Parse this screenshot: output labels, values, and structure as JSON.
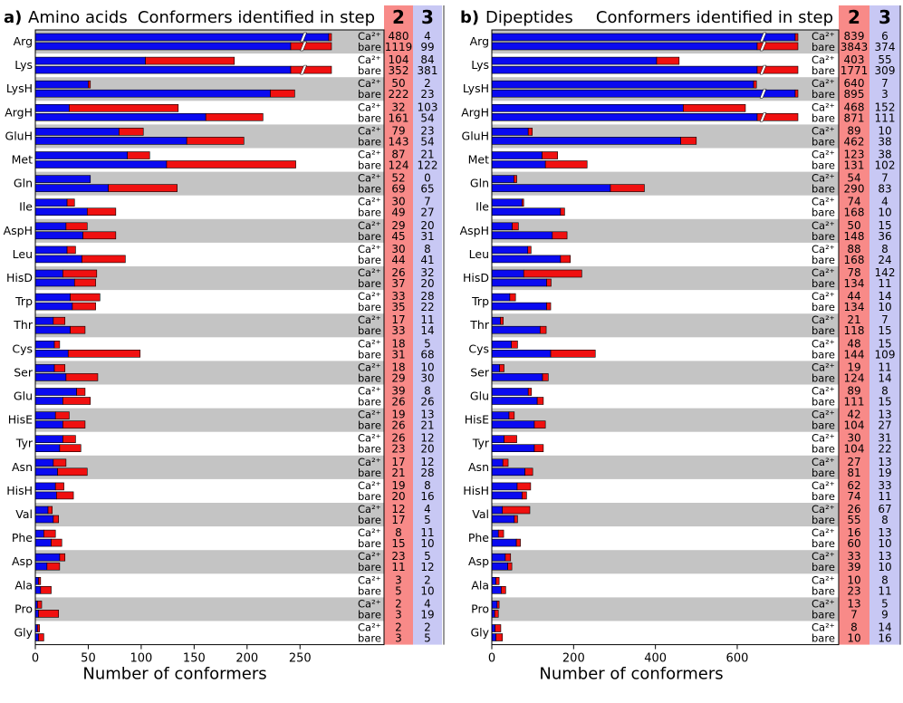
{
  "chart_data": [
    {
      "type": "bar",
      "orientation": "horizontal",
      "stacked": true,
      "panel_label": "a)",
      "title": "Amino acids",
      "header": "Conformers identified in step",
      "step_labels": [
        "2",
        "3"
      ],
      "row_labels": [
        "Ca²⁺",
        "bare"
      ],
      "xlabel": "Number of conformers",
      "xlim": [
        0,
        290
      ],
      "xticks": [
        0,
        50,
        100,
        150,
        200,
        250
      ],
      "axis_break_at": 252,
      "series_names": [
        "step 2",
        "step 3"
      ],
      "series_colors": [
        "#0000ee",
        "#ee0000"
      ],
      "categories": [
        "Arg",
        "Lys",
        "LysH",
        "ArgH",
        "GluH",
        "Met",
        "Gln",
        "Ile",
        "AspH",
        "Leu",
        "HisD",
        "Trp",
        "Thr",
        "Cys",
        "Ser",
        "Glu",
        "HisE",
        "Tyr",
        "Asn",
        "HisH",
        "Val",
        "Phe",
        "Asp",
        "Ala",
        "Pro",
        "Gly"
      ],
      "ca_step2": [
        480,
        104,
        50,
        32,
        79,
        87,
        52,
        30,
        29,
        30,
        26,
        33,
        17,
        18,
        18,
        39,
        19,
        26,
        17,
        19,
        12,
        8,
        23,
        3,
        2,
        2
      ],
      "ca_step3": [
        4,
        84,
        2,
        103,
        23,
        21,
        0,
        7,
        20,
        8,
        32,
        28,
        11,
        5,
        10,
        8,
        13,
        12,
        12,
        8,
        4,
        11,
        5,
        2,
        4,
        2
      ],
      "bare_step2": [
        1119,
        352,
        222,
        161,
        143,
        124,
        69,
        49,
        45,
        44,
        37,
        35,
        33,
        31,
        29,
        26,
        26,
        23,
        21,
        20,
        17,
        15,
        11,
        5,
        3,
        3
      ],
      "bare_step3": [
        99,
        381,
        23,
        54,
        54,
        122,
        65,
        27,
        31,
        41,
        20,
        22,
        14,
        68,
        30,
        26,
        21,
        20,
        28,
        16,
        5,
        10,
        12,
        10,
        19,
        5
      ]
    },
    {
      "type": "bar",
      "orientation": "horizontal",
      "stacked": true,
      "panel_label": "b)",
      "title": "Dipeptides",
      "header": "Conformers identified in step",
      "step_labels": [
        "2",
        "3"
      ],
      "row_labels": [
        "Ca²⁺",
        "bare"
      ],
      "xlabel": "Number of conformers",
      "xlim": [
        0,
        775
      ],
      "xticks": [
        0,
        200,
        400,
        600
      ],
      "axis_break_at": 660,
      "series_names": [
        "step 2",
        "step 3"
      ],
      "series_colors": [
        "#0000ee",
        "#ee0000"
      ],
      "categories": [
        "Arg",
        "Lys",
        "LysH",
        "ArgH",
        "GluH",
        "Met",
        "Gln",
        "Ile",
        "AspH",
        "Leu",
        "HisD",
        "Trp",
        "Thr",
        "Cys",
        "Ser",
        "Glu",
        "HisE",
        "Tyr",
        "Asn",
        "HisH",
        "Val",
        "Phe",
        "Asp",
        "Ala",
        "Pro",
        "Gly"
      ],
      "ca_step2": [
        839,
        403,
        640,
        468,
        89,
        123,
        54,
        74,
        50,
        88,
        78,
        44,
        21,
        48,
        19,
        89,
        42,
        30,
        27,
        62,
        26,
        16,
        33,
        10,
        13,
        8
      ],
      "ca_step3": [
        6,
        55,
        7,
        152,
        10,
        38,
        7,
        4,
        15,
        8,
        142,
        14,
        7,
        15,
        11,
        8,
        13,
        31,
        13,
        33,
        67,
        13,
        13,
        8,
        5,
        14
      ],
      "bare_step2": [
        3843,
        1771,
        895,
        871,
        462,
        131,
        290,
        168,
        148,
        168,
        134,
        134,
        118,
        144,
        124,
        111,
        104,
        104,
        81,
        74,
        55,
        60,
        39,
        23,
        7,
        10
      ],
      "bare_step3": [
        374,
        309,
        3,
        111,
        38,
        102,
        83,
        10,
        36,
        24,
        11,
        10,
        15,
        109,
        14,
        15,
        27,
        22,
        19,
        11,
        8,
        10,
        10,
        11,
        9,
        16
      ]
    }
  ]
}
